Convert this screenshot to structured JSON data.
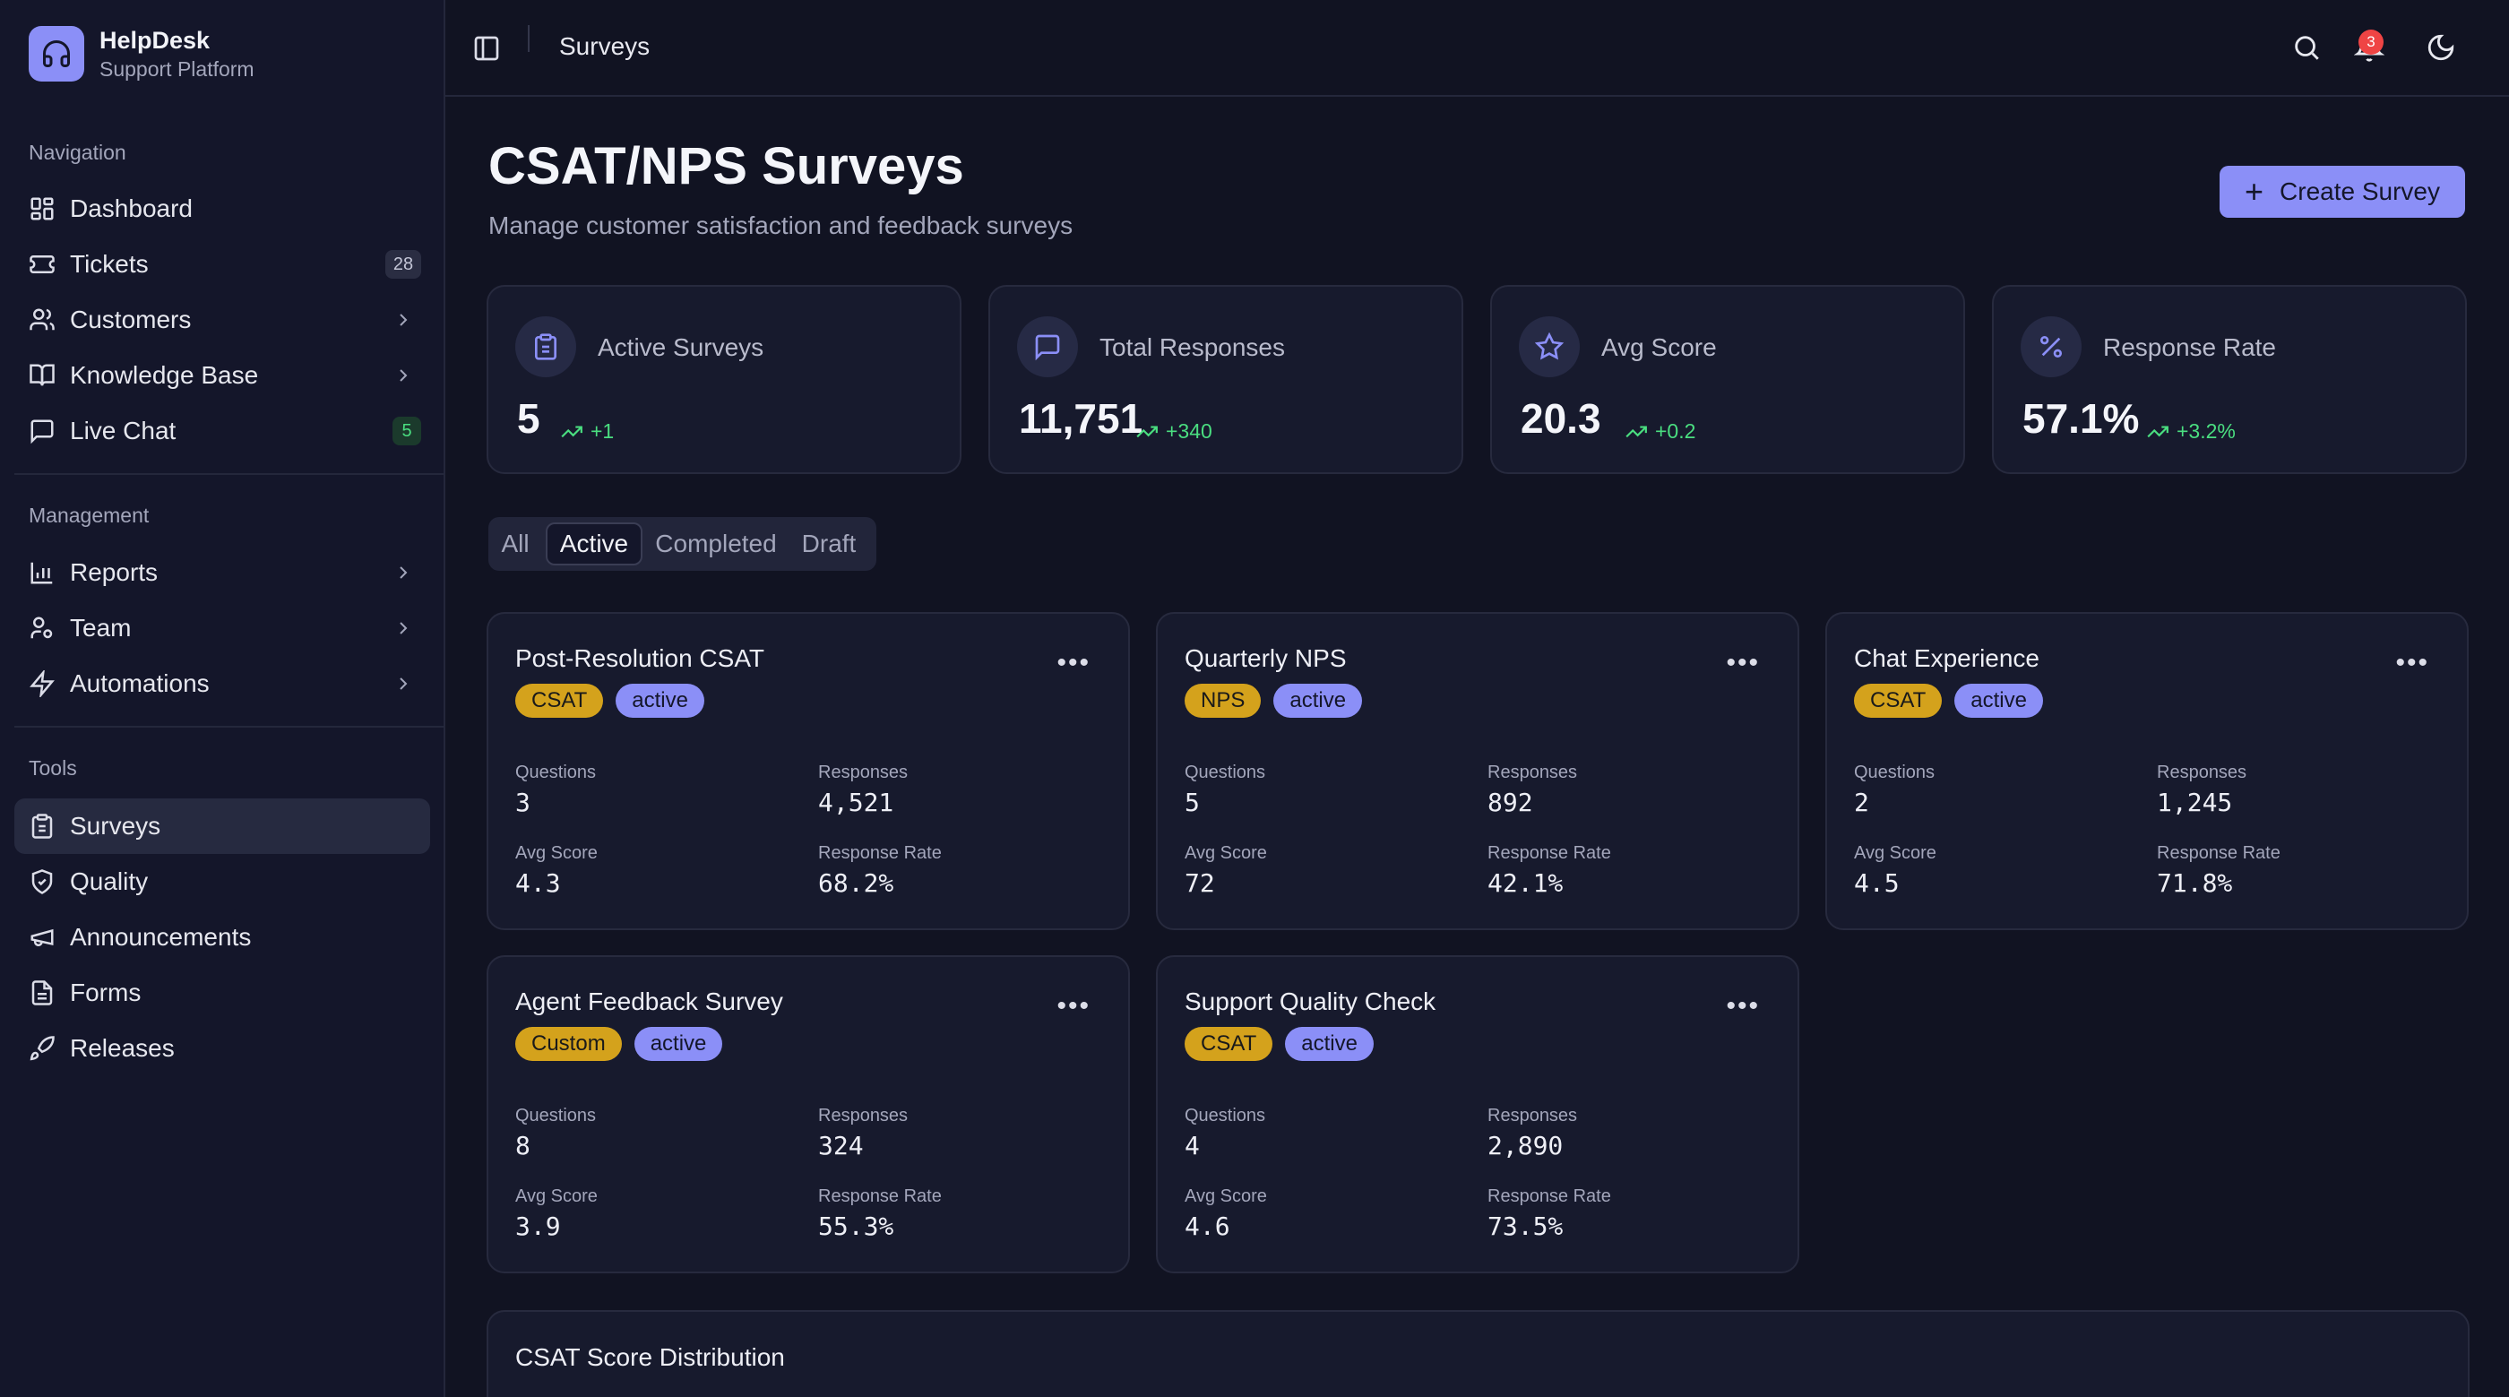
{
  "brand": {
    "title": "HelpDesk",
    "subtitle": "Support Platform"
  },
  "sidebar": {
    "sections": [
      {
        "title": "Navigation"
      },
      {
        "title": "Management"
      },
      {
        "title": "Tools"
      }
    ],
    "items": [
      {
        "label": "Dashboard",
        "icon": "dashboard-icon"
      },
      {
        "label": "Tickets",
        "icon": "ticket-icon",
        "badge": "28"
      },
      {
        "label": "Customers",
        "icon": "users-icon"
      },
      {
        "label": "Knowledge Base",
        "icon": "book-icon"
      },
      {
        "label": "Live Chat",
        "icon": "chat-icon",
        "badge": "5"
      },
      {
        "label": "Reports",
        "icon": "bar-chart-icon"
      },
      {
        "label": "Team",
        "icon": "team-icon"
      },
      {
        "label": "Automations",
        "icon": "lightning-icon"
      },
      {
        "label": "Surveys",
        "icon": "clipboard-icon",
        "active": true
      },
      {
        "label": "Quality",
        "icon": "shield-check-icon"
      },
      {
        "label": "Announcements",
        "icon": "megaphone-icon"
      },
      {
        "label": "Forms",
        "icon": "file-text-icon"
      },
      {
        "label": "Releases",
        "icon": "rocket-icon"
      }
    ]
  },
  "topbar": {
    "title": "Surveys",
    "notification_count": "3"
  },
  "page": {
    "title": "CSAT/NPS Surveys",
    "subtitle": "Manage customer satisfaction and feedback surveys",
    "create_label": "Create Survey"
  },
  "stats": [
    {
      "label": "Active Surveys",
      "value": "5",
      "trend": "+1",
      "icon": "clipboard-icon"
    },
    {
      "label": "Total Responses",
      "value": "11,751",
      "trend": "+340",
      "icon": "message-icon"
    },
    {
      "label": "Avg Score",
      "value": "20.3",
      "trend": "+0.2",
      "icon": "star-icon"
    },
    {
      "label": "Response Rate",
      "value": "57.1%",
      "trend": "+3.2%",
      "icon": "percent-icon"
    }
  ],
  "filters": [
    "All",
    "Active",
    "Completed",
    "Draft"
  ],
  "active_filter": "Active",
  "field_labels": {
    "questions": "Questions",
    "responses": "Responses",
    "avg_score": "Avg Score",
    "response_rate": "Response Rate"
  },
  "surveys": [
    {
      "title": "Post-Resolution CSAT",
      "type": "CSAT",
      "status": "active",
      "questions": "3",
      "responses": "4,521",
      "avg_score": "4.3",
      "response_rate": "68.2%"
    },
    {
      "title": "Quarterly NPS",
      "type": "NPS",
      "status": "active",
      "questions": "5",
      "responses": "892",
      "avg_score": "72",
      "response_rate": "42.1%"
    },
    {
      "title": "Chat Experience",
      "type": "CSAT",
      "status": "active",
      "questions": "2",
      "responses": "1,245",
      "avg_score": "4.5",
      "response_rate": "71.8%"
    },
    {
      "title": "Agent Feedback Survey",
      "type": "Custom",
      "status": "active",
      "questions": "8",
      "responses": "324",
      "avg_score": "3.9",
      "response_rate": "55.3%"
    },
    {
      "title": "Support Quality Check",
      "type": "CSAT",
      "status": "active",
      "questions": "4",
      "responses": "2,890",
      "avg_score": "4.6",
      "response_rate": "73.5%"
    }
  ],
  "distribution": {
    "title": "CSAT Score Distribution"
  },
  "colors": {
    "accent": "#8b8ff7",
    "tag_type": "#d4a21c",
    "trend_up": "#4ade80",
    "background": "#111322",
    "notification": "#ef4444"
  }
}
